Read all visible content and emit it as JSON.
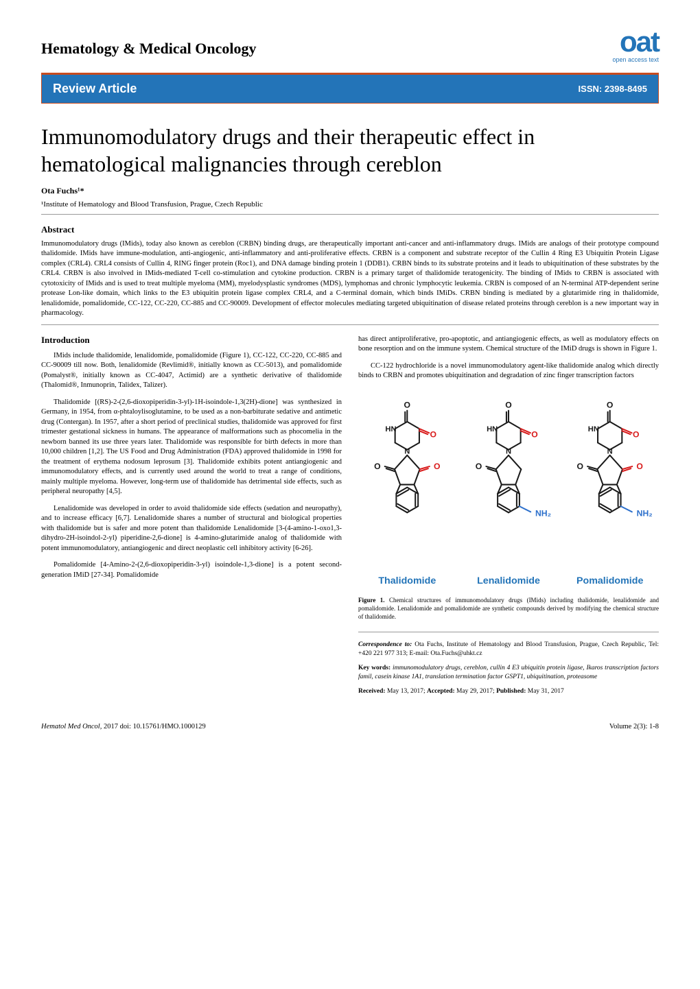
{
  "header": {
    "journal_title": "Hematology & Medical Oncology",
    "logo_main": "oat",
    "logo_sub": "open access text",
    "logo_color": "#2374b8"
  },
  "bar": {
    "left": "Review Article",
    "right": "ISSN: 2398-8495",
    "bg_color": "#2374b8",
    "border_color": "#c84b1e"
  },
  "article": {
    "title": "Immunomodulatory drugs and their therapeutic effect in hematological malignancies through cereblon",
    "author": "Ota Fuchs¹*",
    "affiliation": "¹Institute of Hematology and Blood Transfusion, Prague, Czech Republic"
  },
  "abstract": {
    "heading": "Abstract",
    "body": "Immunomodulatory drugs (IMids), today also known as cereblon (CRBN) binding drugs, are therapeutically important anti-cancer and anti-inflammatory drugs. IMids are analogs of their prototype compound thalidomide. IMids have immune-modulation, anti-angiogenic, anti-inflammatory and anti-proliferative effects. CRBN is a component and substrate receptor of the Cullin 4 Ring E3 Ubiquitin Protein Ligase complex (CRL4). CRL4 consists of Cullin 4, RING finger protein (Roc1), and DNA damage binding protein 1 (DDB1). CRBN binds to its substrate proteins and it leads to ubiquitination of these substrates by the CRL4. CRBN is also involved in IMids-mediated T-cell co-stimulation and cytokine production. CRBN is a primary target of thalidomide teratogenicity. The binding of IMids to CRBN is associated with cytotoxicity of IMids and is used to treat multiple myeloma (MM), myelodysplastic syndromes (MDS), lymphomas and chronic lymphocytic leukemia. CRBN is composed of an N-terminal ATP-dependent serine protease Lon-like domain, which links to the E3 ubiquitin protein ligase complex CRL4, and a C-terminal domain, which binds IMiDs. CRBN binding is mediated by a glutarimide ring in thalidomide, lenalidomide, pomalidomide, CC-122, CC-220, CC-885 and CC-90009. Development of effector molecules mediating targeted ubiquitination of disease related proteins through cereblon is a new important way in pharmacology."
  },
  "left_column": {
    "intro_heading": "Introduction",
    "p1": "IMids include thalidomide, lenalidomide, pomalidomide (Figure 1), CC-122, CC-220, CC-885 and CC-90009 till now. Both, lenalidomide (Revlimid®, initially known as CC-5013), and pomalidomide (Pomalyst®, initially known as CC-4047, Actimid) are a synthetic derivative of thalidomide (Thalomid®, Inmunoprin, Talidex, Talizer).",
    "p2": "Thalidomide [(RS)-2-(2,6-dioxopiperidin-3-yl)-1H-isoindole-1,3(2H)-dione] was synthesized in Germany, in 1954, from α-phtaloylisoglutamine, to be used as a non-barbiturate sedative and antimetic drug (Contergan). In 1957, after a short period of preclinical studies, thalidomide was approved for first trimester gestational sickness in humans. The appearance of malformations such as phocomelia in the newborn banned its use three years later. Thalidomide was responsible for birth defects in more than 10,000 children [1,2]. The US Food and Drug Administration (FDA) approved thalidomide in 1998 for the treatment of erythema nodosum leprosum [3]. Thalidomide exhibits potent antiangiogenic and immunomodulatory effects, and is currently used around the world to treat a range of conditions, mainly multiple myeloma. However, long-term use of thalidomide has detrimental side effects, such as peripheral neuropathy [4,5].",
    "p3": "Lenalidomide was developed in order to avoid thalidomide side effects (sedation and neuropathy), and to increase efficacy [6,7]. Lenalidomide shares a number of structural and biological properties with thalidomide but is safer and more potent than thalidomide Lenalidomide [3-(4-amino-1-oxo1,3-dihydro-2H-isoindol-2-yl) piperidine-2,6-dione] is 4-amino-glutarimide analog of thalidomide with potent immunomodulatory, antiangiogenic and direct neoplastic cell inhibitory activity [6-26].",
    "p4": "Pomalidomide [4-Amino-2-(2,6-dioxopiperidin-3-yl) isoindole-1,3-dione] is a potent second-generation IMiD [27-34]. Pomalidomide"
  },
  "right_column": {
    "p1": "has direct antiproliferative, pro-apoptotic, and antiangiogenic effects, as well as modulatory effects on bone resorption and on the immune system. Chemical structure of the IMiD drugs is shown in Figure 1.",
    "p2": "CC-122 hydrochloride is a novel immunomodulatory agent-like thalidomide analog which directly binds to CRBN and promotes ubiquitination and degradation of zinc finger transcription factors"
  },
  "figure1": {
    "labels": [
      "Thalidomide",
      "Lenalidomide",
      "Pomalidomide"
    ],
    "label_color": "#2374b8",
    "label_fontsize": 14,
    "nh2_color": "#2e71cc",
    "o_red_color": "#d91c1c",
    "bond_color": "#1a1a1a",
    "bond_width": 2,
    "caption_label": "Figure 1.",
    "caption_text": "Chemical structures of immunomodulatory drugs (IMids) including thalidomide, lenalidomide and pomalidomide. Lenalidomide and pomalidomide are synthetic compounds derived by modifying the chemical structure of thalidomide."
  },
  "correspondence": {
    "label": "Correspondence to:",
    "text": "Ota Fuchs, Institute of Hematology and Blood Transfusion, Prague, Czech Republic, Tel: +420 221 977 313; E-mail: Ota.Fuchs@uhkt.cz"
  },
  "keywords": {
    "label": "Key words:",
    "text": "immunomodulatory drugs, cereblon, cullin 4 E3 ubiquitin protein ligase, Ikaros transcription factors famil, casein kinase 1A1, translation termination factor GSPT1, ubiquitination, proteasome"
  },
  "dates": {
    "received_label": "Received:",
    "received": "May 13, 2017;",
    "accepted_label": "Accepted:",
    "accepted": "May 29, 2017;",
    "published_label": "Published:",
    "published": "May 31, 2017"
  },
  "footer": {
    "left_italic": "Hematol Med Oncol,",
    "left_rest": " 2017     doi: 10.15761/HMO.1000129",
    "right": "Volume 2(3): 1-8"
  }
}
